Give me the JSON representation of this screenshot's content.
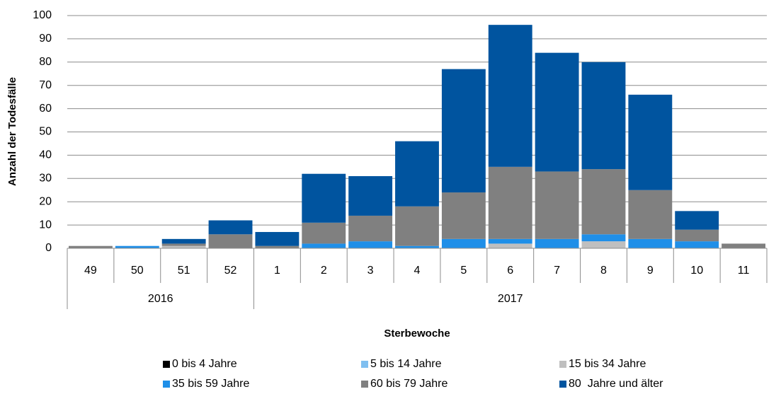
{
  "chart_data": {
    "type": "stacked-bar",
    "x_label": "Sterbewoche",
    "y_label": "Anzahl der Todesfälle",
    "categories": [
      "49",
      "50",
      "51",
      "52",
      "1",
      "2",
      "3",
      "4",
      "5",
      "6",
      "7",
      "8",
      "9",
      "10",
      "11"
    ],
    "category_years": [
      "2016",
      "2016",
      "2016",
      "2016",
      "2017",
      "2017",
      "2017",
      "2017",
      "2017",
      "2017",
      "2017",
      "2017",
      "2017",
      "2017",
      "2017"
    ],
    "series": [
      {
        "name": "0 bis 4 Jahre",
        "color": "#000000",
        "values": [
          0,
          0,
          0,
          0,
          0,
          0,
          0,
          0,
          0,
          0,
          0,
          0,
          0,
          0,
          0
        ]
      },
      {
        "name": "5 bis 14 Jahre",
        "color": "#7fbff0",
        "values": [
          0,
          0,
          0,
          0,
          0,
          0,
          0,
          0,
          0,
          0,
          0,
          0,
          0,
          0,
          0
        ]
      },
      {
        "name": "15 bis 34 Jahre",
        "color": "#bfbfbf",
        "values": [
          0,
          0,
          1,
          0,
          0,
          0,
          0,
          0,
          0,
          2,
          0,
          3,
          0,
          0,
          0
        ]
      },
      {
        "name": "35 bis 59 Jahre",
        "color": "#1f8fe8",
        "values": [
          0,
          1,
          0,
          0,
          0,
          2,
          3,
          1,
          4,
          2,
          4,
          3,
          4,
          3,
          0
        ]
      },
      {
        "name": "60 bis 79 Jahre",
        "color": "#808080",
        "values": [
          1,
          0,
          1,
          6,
          1,
          9,
          11,
          17,
          20,
          31,
          29,
          28,
          21,
          5,
          2
        ]
      },
      {
        "name": "80  Jahre und älter",
        "color": "#00549f",
        "values": [
          0,
          0,
          2,
          6,
          6,
          21,
          17,
          28,
          53,
          61,
          51,
          46,
          41,
          8,
          0
        ]
      }
    ],
    "ylim": [
      0,
      100
    ],
    "yticks": [
      0,
      10,
      20,
      30,
      40,
      50,
      60,
      70,
      80,
      90,
      100
    ],
    "grid": true
  }
}
